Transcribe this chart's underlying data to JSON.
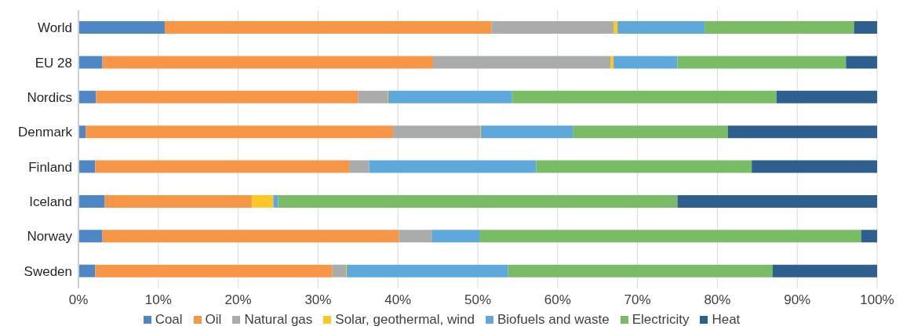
{
  "chart_data": {
    "type": "bar",
    "orientation": "horizontal",
    "stacked": true,
    "categories": [
      "World",
      "EU 28",
      "Nordics",
      "Denmark",
      "Finland",
      "Iceland",
      "Norway",
      "Sweden"
    ],
    "series": [
      {
        "name": "Coal",
        "color": "#4f86c6",
        "values": [
          10.8,
          3.0,
          2.2,
          0.9,
          2.1,
          3.3,
          3.0,
          2.1
        ]
      },
      {
        "name": "Oil",
        "color": "#f79646",
        "values": [
          40.9,
          41.4,
          32.8,
          38.5,
          31.8,
          18.4,
          37.1,
          29.7
        ]
      },
      {
        "name": "Natural gas",
        "color": "#a9acab",
        "values": [
          15.3,
          22.2,
          3.7,
          10.9,
          2.5,
          0,
          4.2,
          1.7
        ]
      },
      {
        "name": "Solar, geothermal, wind",
        "color": "#fdc825",
        "values": [
          0.5,
          0.4,
          0.1,
          0.1,
          0,
          2.7,
          0,
          0.1
        ]
      },
      {
        "name": "Biofuels and waste",
        "color": "#5fa8dc",
        "values": [
          10.9,
          8.0,
          15.5,
          11.5,
          20.9,
          0.6,
          5.9,
          20.2
        ]
      },
      {
        "name": "Electricity",
        "color": "#79bc65",
        "values": [
          18.7,
          21.1,
          33.1,
          19.4,
          27.0,
          50.0,
          47.8,
          33.1
        ]
      },
      {
        "name": "Heat",
        "color": "#2e5f8f",
        "values": [
          2.9,
          3.9,
          12.6,
          18.7,
          15.7,
          25.0,
          2.0,
          13.1
        ]
      }
    ],
    "xlim": [
      0,
      100
    ],
    "xticks": [
      {
        "value": 0,
        "label": "0%"
      },
      {
        "value": 10,
        "label": "10%"
      },
      {
        "value": 20,
        "label": "20%"
      },
      {
        "value": 30,
        "label": "30%"
      },
      {
        "value": 40,
        "label": "40%"
      },
      {
        "value": 50,
        "label": "50%"
      },
      {
        "value": 60,
        "label": "60%"
      },
      {
        "value": 70,
        "label": "70%"
      },
      {
        "value": 80,
        "label": "80%"
      },
      {
        "value": 90,
        "label": "90%"
      },
      {
        "value": 100,
        "label": "100%"
      }
    ],
    "grid": "x",
    "legend": "bottom"
  }
}
